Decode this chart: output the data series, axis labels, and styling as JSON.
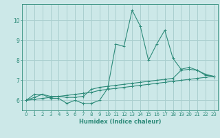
{
  "title": "",
  "xlabel": "Humidex (Indice chaleur)",
  "x": [
    0,
    1,
    2,
    3,
    4,
    5,
    6,
    7,
    8,
    9,
    10,
    11,
    12,
    13,
    14,
    15,
    16,
    17,
    18,
    19,
    20,
    21,
    22,
    23
  ],
  "line1": [
    6.0,
    6.3,
    6.3,
    6.1,
    6.1,
    5.85,
    6.0,
    5.85,
    5.85,
    6.0,
    6.6,
    8.8,
    8.7,
    10.5,
    9.7,
    8.0,
    8.8,
    9.5,
    8.1,
    7.55,
    7.65,
    7.5,
    7.25,
    7.2
  ],
  "line2": [
    6.0,
    6.15,
    6.3,
    6.2,
    6.2,
    6.15,
    6.15,
    6.2,
    6.55,
    6.65,
    6.7,
    6.75,
    6.8,
    6.85,
    6.9,
    6.95,
    7.0,
    7.05,
    7.1,
    7.5,
    7.55,
    7.5,
    7.3,
    7.2
  ],
  "line3": [
    6.0,
    6.05,
    6.1,
    6.15,
    6.2,
    6.25,
    6.3,
    6.35,
    6.4,
    6.5,
    6.55,
    6.6,
    6.65,
    6.7,
    6.75,
    6.8,
    6.85,
    6.9,
    6.95,
    7.0,
    7.05,
    7.1,
    7.15,
    7.2
  ],
  "line_color": "#2e8b7a",
  "bg_color": "#cce8e8",
  "grid_color": "#aacfcf",
  "xlim": [
    -0.5,
    23.5
  ],
  "ylim": [
    5.5,
    10.8
  ],
  "yticks": [
    6,
    7,
    8,
    9,
    10
  ],
  "xticks": [
    0,
    1,
    2,
    3,
    4,
    5,
    6,
    7,
    8,
    9,
    10,
    11,
    12,
    13,
    14,
    15,
    16,
    17,
    18,
    19,
    20,
    21,
    22,
    23
  ],
  "tick_fontsize": 5.0,
  "xlabel_fontsize": 6.0
}
